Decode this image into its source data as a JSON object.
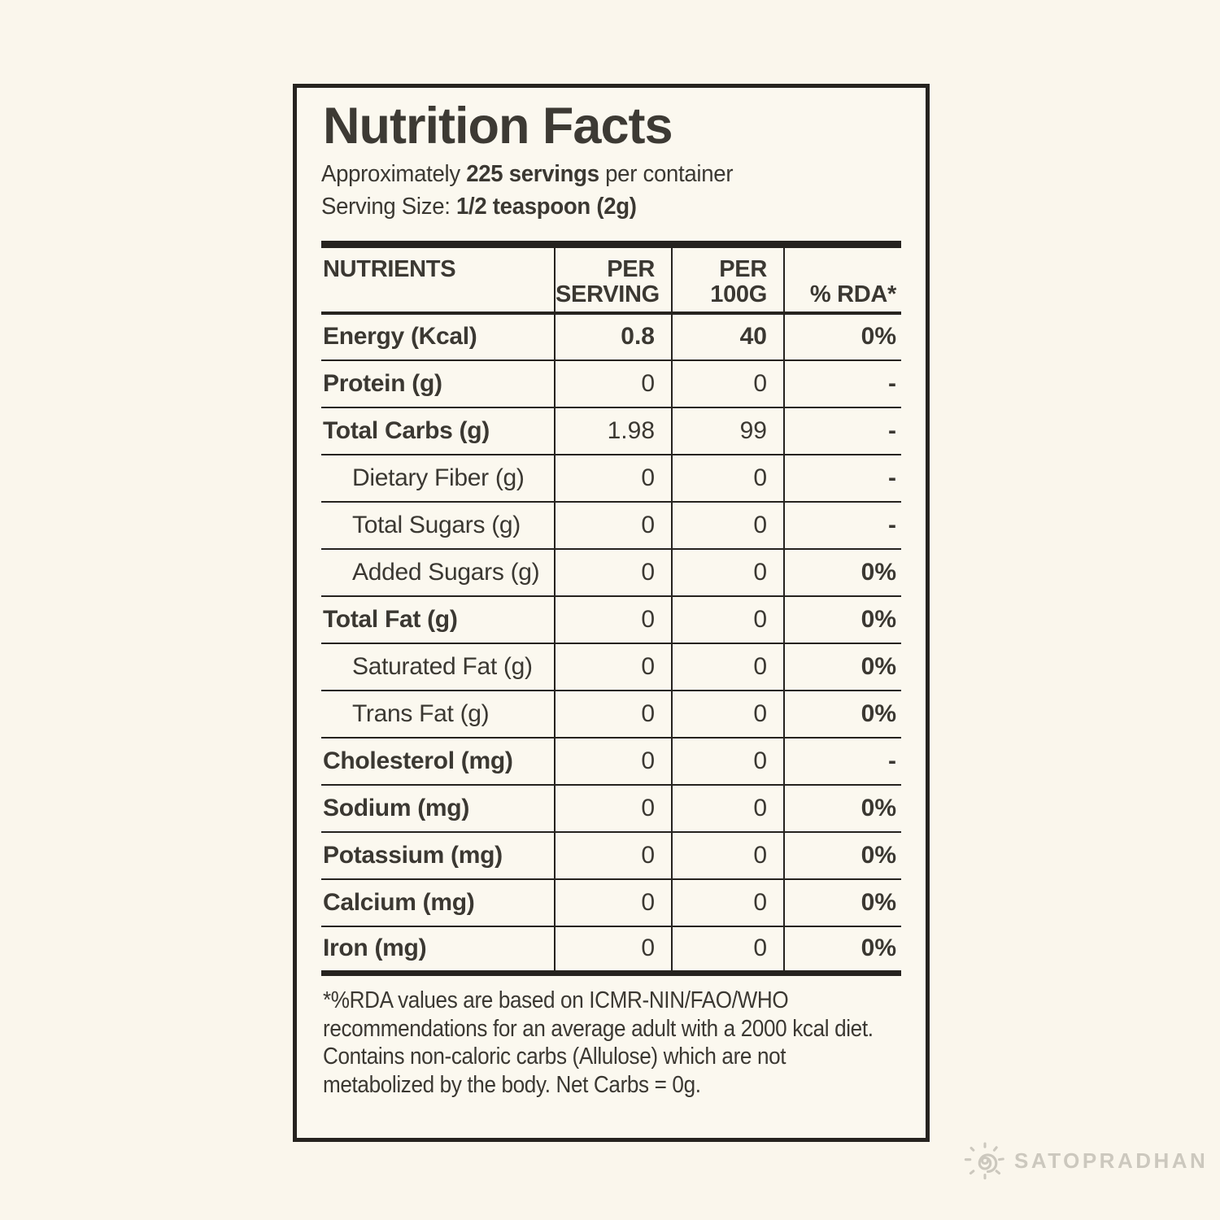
{
  "colors": {
    "background": "#FAF6EC",
    "label_background": "#FBF8EF",
    "ink": "#3B3832",
    "line": "#26231F",
    "watermark": "#CCC8BE"
  },
  "label": {
    "title": "Nutrition Facts",
    "servings_line": {
      "prefix": "Approximately ",
      "bold": "225 servings",
      "suffix": " per container"
    },
    "serving_size_line": {
      "prefix": "Serving Size: ",
      "bold": "1/2 teaspoon (2g)"
    },
    "table": {
      "header": {
        "nutrients": "NUTRIENTS",
        "per_serving": "PER\nSERVING",
        "per_100g": "PER\n100G",
        "rda": "% RDA*"
      },
      "rows": [
        {
          "name": "Energy (Kcal)",
          "per_serving": "0.8",
          "per_100g": "40",
          "rda": "0%",
          "style": "main",
          "values_bold": true
        },
        {
          "name": "Protein (g)",
          "per_serving": "0",
          "per_100g": "0",
          "rda": "-",
          "style": "main",
          "values_bold": false
        },
        {
          "name": "Total Carbs (g)",
          "per_serving": "1.98",
          "per_100g": "99",
          "rda": "-",
          "style": "main",
          "values_bold": false
        },
        {
          "name": "Dietary Fiber (g)",
          "per_serving": "0",
          "per_100g": "0",
          "rda": "-",
          "style": "sub",
          "values_bold": false
        },
        {
          "name": "Total Sugars (g)",
          "per_serving": "0",
          "per_100g": "0",
          "rda": "-",
          "style": "sub",
          "values_bold": false
        },
        {
          "name": "Added Sugars (g)",
          "per_serving": "0",
          "per_100g": "0",
          "rda": "0%",
          "style": "sub",
          "values_bold": false
        },
        {
          "name": "Total Fat (g)",
          "per_serving": "0",
          "per_100g": "0",
          "rda": "0%",
          "style": "main",
          "values_bold": false
        },
        {
          "name": "Saturated Fat (g)",
          "per_serving": "0",
          "per_100g": "0",
          "rda": "0%",
          "style": "sub",
          "values_bold": false
        },
        {
          "name": "Trans Fat (g)",
          "per_serving": "0",
          "per_100g": "0",
          "rda": "0%",
          "style": "sub",
          "values_bold": false
        },
        {
          "name": "Cholesterol (mg)",
          "per_serving": "0",
          "per_100g": "0",
          "rda": "-",
          "style": "main",
          "values_bold": false
        },
        {
          "name": "Sodium (mg)",
          "per_serving": "0",
          "per_100g": "0",
          "rda": "0%",
          "style": "main",
          "values_bold": false
        },
        {
          "name": "Potassium (mg)",
          "per_serving": "0",
          "per_100g": "0",
          "rda": "0%",
          "style": "main",
          "values_bold": false
        },
        {
          "name": "Calcium (mg)",
          "per_serving": "0",
          "per_100g": "0",
          "rda": "0%",
          "style": "main",
          "values_bold": false
        },
        {
          "name": "Iron (mg)",
          "per_serving": "0",
          "per_100g": "0",
          "rda": "0%",
          "style": "main",
          "values_bold": false
        }
      ]
    },
    "footnote": "*%RDA values are based on ICMR-NIN/FAO/WHO\nrecommendations for an average adult with a 2000 kcal diet.\nContains non-caloric carbs (Allulose) which are not\nmetabolized by the body. Net Carbs = 0g."
  },
  "watermark": {
    "brand": "SATOPRADHAN"
  }
}
